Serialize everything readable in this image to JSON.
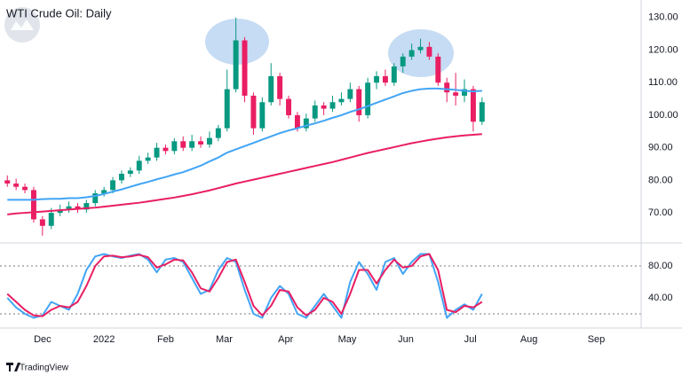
{
  "chart_data": [
    {
      "type": "candlestick",
      "title": "WTI Crude Oil: Daily",
      "x": [
        1,
        4,
        7,
        10,
        13,
        16,
        19,
        22,
        25,
        28,
        31,
        34,
        37,
        40,
        43,
        46,
        49,
        52,
        55,
        58,
        61,
        64,
        67,
        70,
        73,
        76,
        79,
        82,
        85,
        88,
        91,
        94,
        97,
        100,
        103,
        106,
        109,
        112,
        115,
        118,
        121,
        124,
        127,
        130,
        133,
        136,
        139,
        142,
        145,
        148,
        151,
        154,
        157,
        160,
        163
      ],
      "open": [
        80,
        79,
        78,
        77,
        68,
        66,
        70,
        71,
        72,
        71,
        73,
        76,
        77,
        80,
        82,
        83,
        86,
        87,
        90,
        89,
        92,
        90,
        92,
        91,
        93,
        96,
        108,
        123,
        106,
        96,
        104,
        112,
        105,
        100,
        96,
        99,
        103,
        102,
        104,
        105,
        108,
        100,
        110,
        112,
        110,
        115,
        118,
        120,
        121,
        118,
        110,
        107,
        106,
        108,
        98
      ],
      "high": [
        81.5,
        80.5,
        79,
        78,
        69,
        71.5,
        72.5,
        73.5,
        73,
        74,
        77,
        78,
        81,
        83,
        84,
        87.5,
        88.5,
        91.5,
        91,
        93,
        93.5,
        94,
        93.5,
        95,
        97,
        114,
        130,
        124,
        107,
        105.5,
        116,
        113,
        106,
        101,
        100.5,
        104.5,
        104,
        106,
        107,
        110,
        109,
        111.5,
        113.5,
        114,
        116,
        119,
        122,
        123.5,
        122.5,
        119,
        111.5,
        113,
        111,
        109,
        105.5
      ],
      "low": [
        78,
        77,
        76,
        67,
        63,
        65,
        69,
        70,
        70,
        70,
        72,
        75,
        76,
        79,
        81,
        82,
        85,
        86,
        88,
        88,
        89,
        89,
        90,
        90,
        92,
        95,
        107,
        104,
        94,
        95,
        103,
        103,
        99,
        95,
        95,
        98,
        100,
        101,
        103,
        104,
        98,
        99,
        108,
        109,
        109,
        113,
        117,
        119,
        117,
        109,
        104,
        103,
        104,
        95,
        97
      ],
      "close": [
        79,
        78,
        77,
        68,
        66,
        70,
        71,
        72,
        71,
        73,
        76,
        77,
        80,
        82,
        83,
        86,
        87,
        90,
        89,
        92,
        90,
        92,
        91,
        93,
        96,
        108,
        123,
        106,
        96,
        104,
        112,
        105,
        100,
        96,
        99,
        103,
        102,
        104,
        105,
        108,
        100,
        110,
        112,
        110,
        115,
        118,
        120,
        121,
        118,
        110,
        107,
        106,
        108,
        98,
        104
      ],
      "up_color": "#089981",
      "down_color": "#e91e63",
      "series": [
        {
          "color": "#42a5f5",
          "values": [
            74,
            74,
            74,
            74,
            74.2,
            74.3,
            74.3,
            74.5,
            74.5,
            74.8,
            75.2,
            75.8,
            76.5,
            77.2,
            78,
            78.8,
            79.5,
            80.3,
            81,
            81.8,
            82.5,
            83.5,
            84.5,
            85.8,
            87,
            88.5,
            89.5,
            90.5,
            91.5,
            92.5,
            93.5,
            94.5,
            95.3,
            96,
            96.8,
            97.5,
            98.3,
            99.2,
            100,
            101,
            101.8,
            102.8,
            103.8,
            104.8,
            105.8,
            106.8,
            107.5,
            108,
            108.2,
            108.2,
            108,
            107.8,
            107.5,
            107.3,
            107.5
          ]
        },
        {
          "color": "#e91e63",
          "values": [
            69.5,
            69.8,
            70,
            70.2,
            70.4,
            70.6,
            70.8,
            71,
            71.2,
            71.4,
            71.6,
            71.9,
            72.2,
            72.5,
            72.8,
            73.1,
            73.5,
            73.9,
            74.3,
            74.7,
            75.2,
            75.7,
            76.3,
            76.9,
            77.6,
            78.3,
            79,
            79.6,
            80.2,
            80.8,
            81.4,
            82,
            82.6,
            83.2,
            83.8,
            84.4,
            85,
            85.6,
            86.3,
            87,
            87.7,
            88.4,
            89,
            89.6,
            90.2,
            90.8,
            91.4,
            91.9,
            92.4,
            92.8,
            93.2,
            93.5,
            93.8,
            94,
            94.2
          ]
        }
      ],
      "xlim": [
        -1.5,
        217.3
      ],
      "xticks": [
        {
          "value": 13,
          "label": "Dec"
        },
        {
          "value": 34,
          "label": "2022"
        },
        {
          "value": 55,
          "label": "Feb"
        },
        {
          "value": 75,
          "label": "Mar"
        },
        {
          "value": 96,
          "label": "Apr"
        },
        {
          "value": 117,
          "label": "May"
        },
        {
          "value": 137,
          "label": "Jun"
        },
        {
          "value": 159,
          "label": "Jul"
        },
        {
          "value": 179,
          "label": "Aug"
        },
        {
          "value": 202,
          "label": "Sep"
        }
      ],
      "ylim": [
        61.3,
        135.4
      ],
      "yticks": [
        {
          "value": 70,
          "label": "70.00"
        },
        {
          "value": 80,
          "label": "80.00"
        },
        {
          "value": 90,
          "label": "90.00"
        },
        {
          "value": 100,
          "label": "100.00"
        },
        {
          "value": 110,
          "label": "110.00"
        },
        {
          "value": 120,
          "label": "120.00"
        },
        {
          "value": 130,
          "label": "130.00"
        }
      ]
    },
    {
      "type": "line",
      "x": [
        1,
        4,
        7,
        10,
        13,
        16,
        19,
        22,
        25,
        28,
        31,
        34,
        37,
        40,
        43,
        46,
        49,
        52,
        55,
        58,
        61,
        64,
        67,
        70,
        73,
        76,
        79,
        82,
        85,
        88,
        91,
        94,
        97,
        100,
        103,
        106,
        109,
        112,
        115,
        118,
        121,
        124,
        127,
        130,
        133,
        136,
        139,
        142,
        145,
        148,
        151,
        154,
        157,
        160,
        163
      ],
      "series": [
        {
          "color": "#42a5f5",
          "values": [
            40,
            28,
            20,
            15,
            18,
            35,
            30,
            25,
            45,
            75,
            92,
            95,
            92,
            90,
            93,
            95,
            88,
            72,
            88,
            90,
            85,
            65,
            45,
            50,
            75,
            90,
            85,
            50,
            20,
            15,
            40,
            55,
            45,
            20,
            15,
            30,
            45,
            30,
            15,
            60,
            85,
            70,
            50,
            85,
            90,
            70,
            85,
            95,
            95,
            60,
            15,
            25,
            32,
            25,
            45
          ]
        },
        {
          "color": "#e91e63",
          "values": [
            45,
            35,
            25,
            18,
            17,
            25,
            30,
            28,
            35,
            55,
            80,
            92,
            93,
            91,
            92,
            94,
            91,
            78,
            82,
            88,
            87,
            72,
            52,
            48,
            65,
            85,
            88,
            60,
            30,
            18,
            30,
            50,
            48,
            28,
            18,
            25,
            40,
            35,
            20,
            45,
            75,
            75,
            58,
            75,
            88,
            78,
            80,
            92,
            95,
            75,
            25,
            22,
            30,
            28,
            35
          ]
        }
      ],
      "levels": [
        80,
        20
      ],
      "xlim": [
        -1.5,
        217.3
      ],
      "ylim": [
        2.2,
        107.8
      ],
      "yticks": [
        {
          "value": 40,
          "label": "40.00"
        },
        {
          "value": 80,
          "label": "80.00"
        }
      ]
    }
  ],
  "footer": {
    "brand": "TradingView"
  }
}
